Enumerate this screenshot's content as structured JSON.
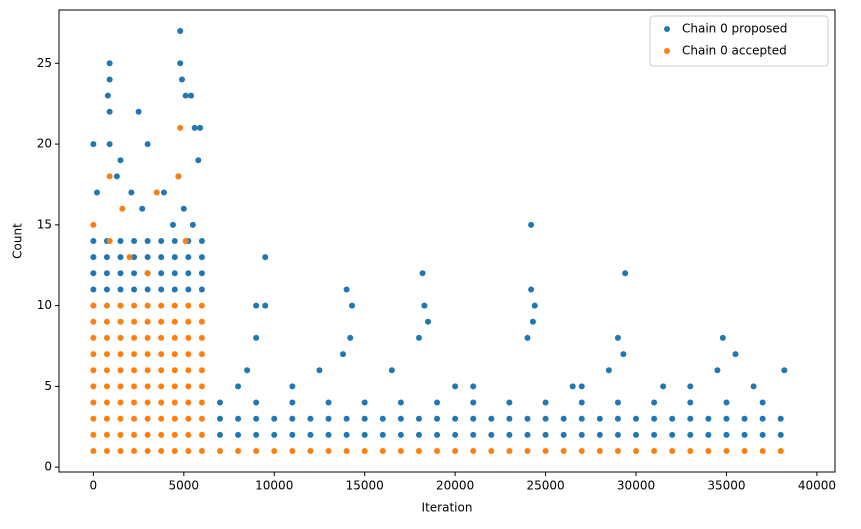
{
  "chart_data": {
    "type": "scatter",
    "xlabel": "Iteration",
    "ylabel": "Count",
    "xlim": [
      -1900,
      41000
    ],
    "ylim": [
      -0.3,
      28.3
    ],
    "xticks": [
      0,
      5000,
      10000,
      15000,
      20000,
      25000,
      30000,
      35000,
      40000
    ],
    "yticks": [
      0,
      5,
      10,
      15,
      20,
      25
    ],
    "legend": "upper right",
    "series": [
      {
        "name": "Chain 0 proposed",
        "color": "#1f77b4",
        "x": [
          0,
          750,
          1500,
          2250,
          3000,
          3750,
          4500,
          5250,
          6000,
          0,
          750,
          1500,
          2250,
          3000,
          3750,
          4500,
          5250,
          6000,
          0,
          750,
          1500,
          2250,
          3000,
          3750,
          4500,
          5250,
          6000,
          0,
          750,
          1500,
          2250,
          3000,
          3750,
          4500,
          5250,
          6000,
          900,
          900,
          800,
          900,
          2500,
          4800,
          4800,
          4900,
          5100,
          5400,
          5600,
          5900,
          0,
          900,
          3000,
          1500,
          5800,
          4700,
          2100,
          5000,
          200,
          1300,
          2700,
          3900,
          4400,
          5500,
          7000,
          8000,
          9000,
          10000,
          11000,
          12000,
          13000,
          14000,
          15000,
          16000,
          17000,
          18000,
          19000,
          20000,
          21000,
          22000,
          23000,
          24000,
          25000,
          26000,
          27000,
          28000,
          29000,
          30000,
          31000,
          32000,
          33000,
          34000,
          35000,
          36000,
          37000,
          38000,
          7000,
          8000,
          9000,
          10000,
          11000,
          12000,
          13000,
          14000,
          15000,
          16000,
          17000,
          18000,
          19000,
          20000,
          21000,
          22000,
          23000,
          24000,
          25000,
          26000,
          27000,
          28000,
          29000,
          30000,
          31000,
          32000,
          33000,
          34000,
          35000,
          36000,
          37000,
          38000,
          7000,
          9000,
          11000,
          13000,
          15000,
          17000,
          19000,
          21000,
          23000,
          25000,
          27000,
          29000,
          31000,
          33000,
          35000,
          37000,
          9500,
          9000,
          9500,
          9000,
          8500,
          14000,
          14300,
          14200,
          13800,
          18200,
          18300,
          18500,
          18000,
          24200,
          24200,
          24400,
          24300,
          24000,
          29400,
          29000,
          29300,
          28500,
          34800,
          35500,
          34500,
          38200,
          11000,
          12500,
          16500,
          21000,
          26500,
          31500,
          36500,
          8000,
          20000,
          27000,
          33000
        ],
        "values": [
          11,
          11,
          11,
          11,
          11,
          11,
          11,
          11,
          11,
          12,
          12,
          12,
          12,
          12,
          12,
          12,
          12,
          12,
          13,
          13,
          13,
          13,
          13,
          13,
          13,
          13,
          13,
          14,
          14,
          14,
          14,
          14,
          14,
          14,
          14,
          14,
          25,
          24,
          23,
          22,
          22,
          27,
          25,
          24,
          23,
          23,
          21,
          21,
          20,
          20,
          20,
          19,
          19,
          18,
          17,
          16,
          17,
          18,
          16,
          17,
          15,
          15,
          2,
          2,
          2,
          2,
          2,
          2,
          2,
          2,
          2,
          2,
          2,
          2,
          2,
          2,
          2,
          2,
          2,
          2,
          2,
          2,
          2,
          2,
          2,
          2,
          2,
          2,
          2,
          2,
          2,
          2,
          2,
          2,
          3,
          3,
          3,
          3,
          3,
          3,
          3,
          3,
          3,
          3,
          3,
          3,
          3,
          3,
          3,
          3,
          3,
          3,
          3,
          3,
          3,
          3,
          3,
          3,
          3,
          3,
          3,
          3,
          3,
          3,
          3,
          3,
          4,
          4,
          4,
          4,
          4,
          4,
          4,
          4,
          4,
          4,
          4,
          4,
          4,
          4,
          4,
          4,
          13,
          10,
          10,
          8,
          6,
          11,
          10,
          8,
          7,
          12,
          10,
          9,
          8,
          15,
          11,
          10,
          9,
          8,
          12,
          8,
          7,
          6,
          8,
          7,
          6,
          6,
          5,
          6,
          6,
          5,
          5,
          5,
          5,
          5,
          5,
          5,
          5
        ]
      },
      {
        "name": "Chain 0 accepted",
        "color": "#ff7f0e",
        "x": [
          0,
          750,
          1500,
          2250,
          3000,
          3750,
          4500,
          5250,
          6000,
          0,
          750,
          1500,
          2250,
          3000,
          3750,
          4500,
          5250,
          6000,
          0,
          750,
          1500,
          2250,
          3000,
          3750,
          4500,
          5250,
          6000,
          0,
          750,
          1500,
          2250,
          3000,
          3750,
          4500,
          5250,
          6000,
          0,
          750,
          1500,
          2250,
          3000,
          3750,
          4500,
          5250,
          6000,
          0,
          750,
          1500,
          2250,
          3000,
          3750,
          4500,
          5250,
          6000,
          0,
          750,
          1500,
          2250,
          3000,
          3750,
          4500,
          5250,
          6000,
          0,
          750,
          1500,
          2250,
          3000,
          3750,
          4500,
          5250,
          6000,
          0,
          750,
          1500,
          2250,
          3000,
          3750,
          4500,
          5250,
          6000,
          0,
          750,
          1500,
          2250,
          3000,
          3750,
          4500,
          5250,
          6000,
          4800,
          4700,
          900,
          1600,
          3500,
          5100,
          0,
          2000,
          900,
          3000,
          7000,
          8000,
          9000,
          10000,
          11000,
          12000,
          13000,
          14000,
          15000,
          16000,
          17000,
          18000,
          19000,
          20000,
          21000,
          22000,
          23000,
          24000,
          25000,
          26000,
          27000,
          28000,
          29000,
          30000,
          31000,
          32000,
          33000,
          34000,
          35000,
          36000,
          37000,
          38000
        ],
        "values": [
          1,
          1,
          1,
          1,
          1,
          1,
          1,
          1,
          1,
          2,
          2,
          2,
          2,
          2,
          2,
          2,
          2,
          2,
          3,
          3,
          3,
          3,
          3,
          3,
          3,
          3,
          3,
          4,
          4,
          4,
          4,
          4,
          4,
          4,
          4,
          4,
          5,
          5,
          5,
          5,
          5,
          5,
          5,
          5,
          5,
          6,
          6,
          6,
          6,
          6,
          6,
          6,
          6,
          6,
          7,
          7,
          7,
          7,
          7,
          7,
          7,
          7,
          7,
          8,
          8,
          8,
          8,
          8,
          8,
          8,
          8,
          8,
          9,
          9,
          9,
          9,
          9,
          9,
          9,
          9,
          9,
          10,
          10,
          10,
          10,
          10,
          10,
          10,
          10,
          10,
          21,
          18,
          18,
          16,
          17,
          14,
          15,
          13,
          14,
          12,
          1,
          1,
          1,
          1,
          1,
          1,
          1,
          1,
          1,
          1,
          1,
          1,
          1,
          1,
          1,
          1,
          1,
          1,
          1,
          1,
          1,
          1,
          1,
          1,
          1,
          1,
          1,
          1,
          1,
          1,
          1,
          1
        ]
      }
    ]
  }
}
